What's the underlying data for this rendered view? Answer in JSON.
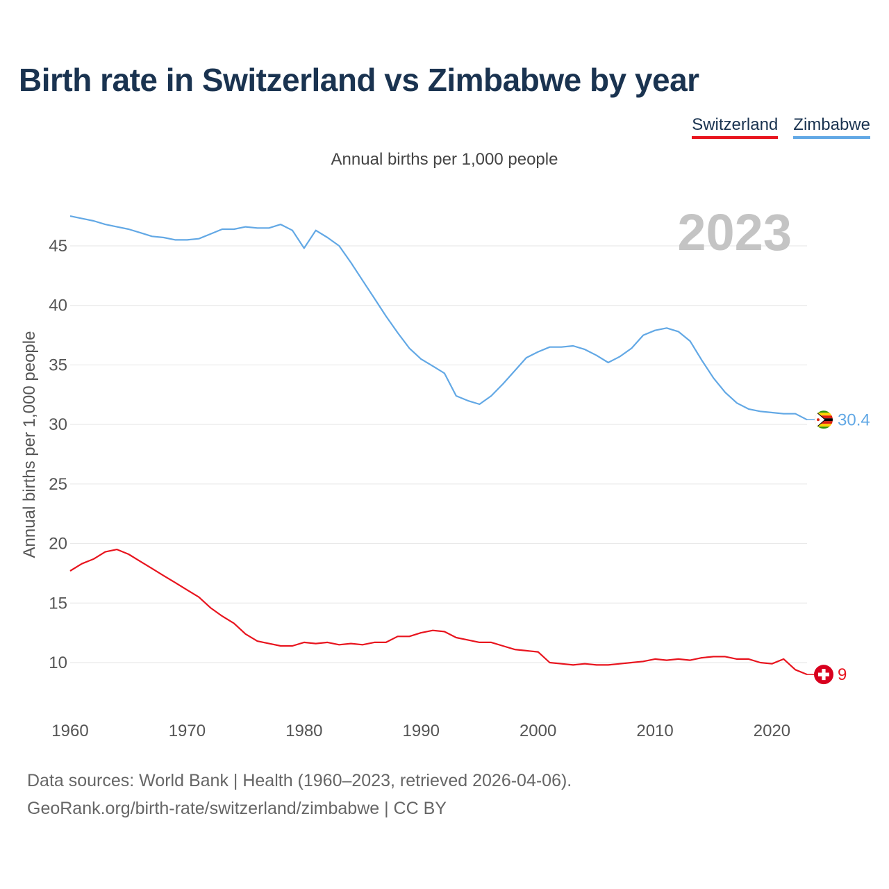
{
  "header": {
    "title": "Birth rate in Switzerland vs Zimbabwe by year",
    "subtitle": "Annual births per 1,000 people"
  },
  "footer": {
    "line1": "Data sources: World Bank | Health (1960–2023, retrieved 2026-04-06).",
    "line2": "GeoRank.org/birth-rate/switzerland/zimbabwe | CC BY"
  },
  "chart_data": {
    "type": "line",
    "title": "Birth rate in Switzerland vs Zimbabwe by year",
    "subtitle": "Annual births per 1,000 people",
    "xlabel": "",
    "ylabel": "Annual births per 1,000 people",
    "year_label": "2023",
    "xlim": [
      1960,
      2023
    ],
    "ylim": [
      5,
      48
    ],
    "x_ticks": [
      1960,
      1970,
      1980,
      1990,
      2000,
      2010,
      2020
    ],
    "y_ticks": [
      10,
      15,
      20,
      25,
      30,
      35,
      40,
      45
    ],
    "grid": true,
    "legend_position": "top-right",
    "x": [
      1960,
      1961,
      1962,
      1963,
      1964,
      1965,
      1966,
      1967,
      1968,
      1969,
      1970,
      1971,
      1972,
      1973,
      1974,
      1975,
      1976,
      1977,
      1978,
      1979,
      1980,
      1981,
      1982,
      1983,
      1984,
      1985,
      1986,
      1987,
      1988,
      1989,
      1990,
      1991,
      1992,
      1993,
      1994,
      1995,
      1996,
      1997,
      1998,
      1999,
      2000,
      2001,
      2002,
      2003,
      2004,
      2005,
      2006,
      2007,
      2008,
      2009,
      2010,
      2011,
      2012,
      2013,
      2014,
      2015,
      2016,
      2017,
      2018,
      2019,
      2020,
      2021,
      2022,
      2023
    ],
    "series": [
      {
        "name": "Switzerland",
        "color": "#e8141e",
        "end_label": "9",
        "values": [
          17.7,
          18.3,
          18.7,
          19.3,
          19.5,
          19.1,
          18.5,
          17.9,
          17.3,
          16.7,
          16.1,
          15.5,
          14.6,
          13.9,
          13.3,
          12.4,
          11.8,
          11.6,
          11.4,
          11.4,
          11.7,
          11.6,
          11.7,
          11.5,
          11.6,
          11.5,
          11.7,
          11.7,
          12.2,
          12.2,
          12.5,
          12.7,
          12.6,
          12.1,
          11.9,
          11.7,
          11.7,
          11.4,
          11.1,
          11.0,
          10.9,
          10.0,
          9.9,
          9.8,
          9.9,
          9.8,
          9.8,
          9.9,
          10.0,
          10.1,
          10.3,
          10.2,
          10.3,
          10.2,
          10.4,
          10.5,
          10.5,
          10.3,
          10.3,
          10.0,
          9.9,
          10.3,
          9.4,
          9.0
        ]
      },
      {
        "name": "Zimbabwe",
        "color": "#62a8e5",
        "end_label": "30.4",
        "values": [
          47.5,
          47.3,
          47.1,
          46.8,
          46.6,
          46.4,
          46.1,
          45.8,
          45.7,
          45.5,
          45.5,
          45.6,
          46.0,
          46.4,
          46.4,
          46.6,
          46.5,
          46.5,
          46.8,
          46.3,
          44.8,
          46.3,
          45.7,
          45.0,
          43.6,
          42.1,
          40.6,
          39.1,
          37.7,
          36.4,
          35.5,
          34.9,
          34.3,
          32.4,
          32.0,
          31.7,
          32.4,
          33.4,
          34.5,
          35.6,
          36.1,
          36.5,
          36.5,
          36.6,
          36.3,
          35.8,
          35.2,
          35.7,
          36.4,
          37.5,
          37.9,
          38.1,
          37.8,
          37.0,
          35.4,
          33.9,
          32.7,
          31.8,
          31.3,
          31.1,
          31.0,
          30.9,
          30.9,
          30.4
        ]
      }
    ]
  }
}
